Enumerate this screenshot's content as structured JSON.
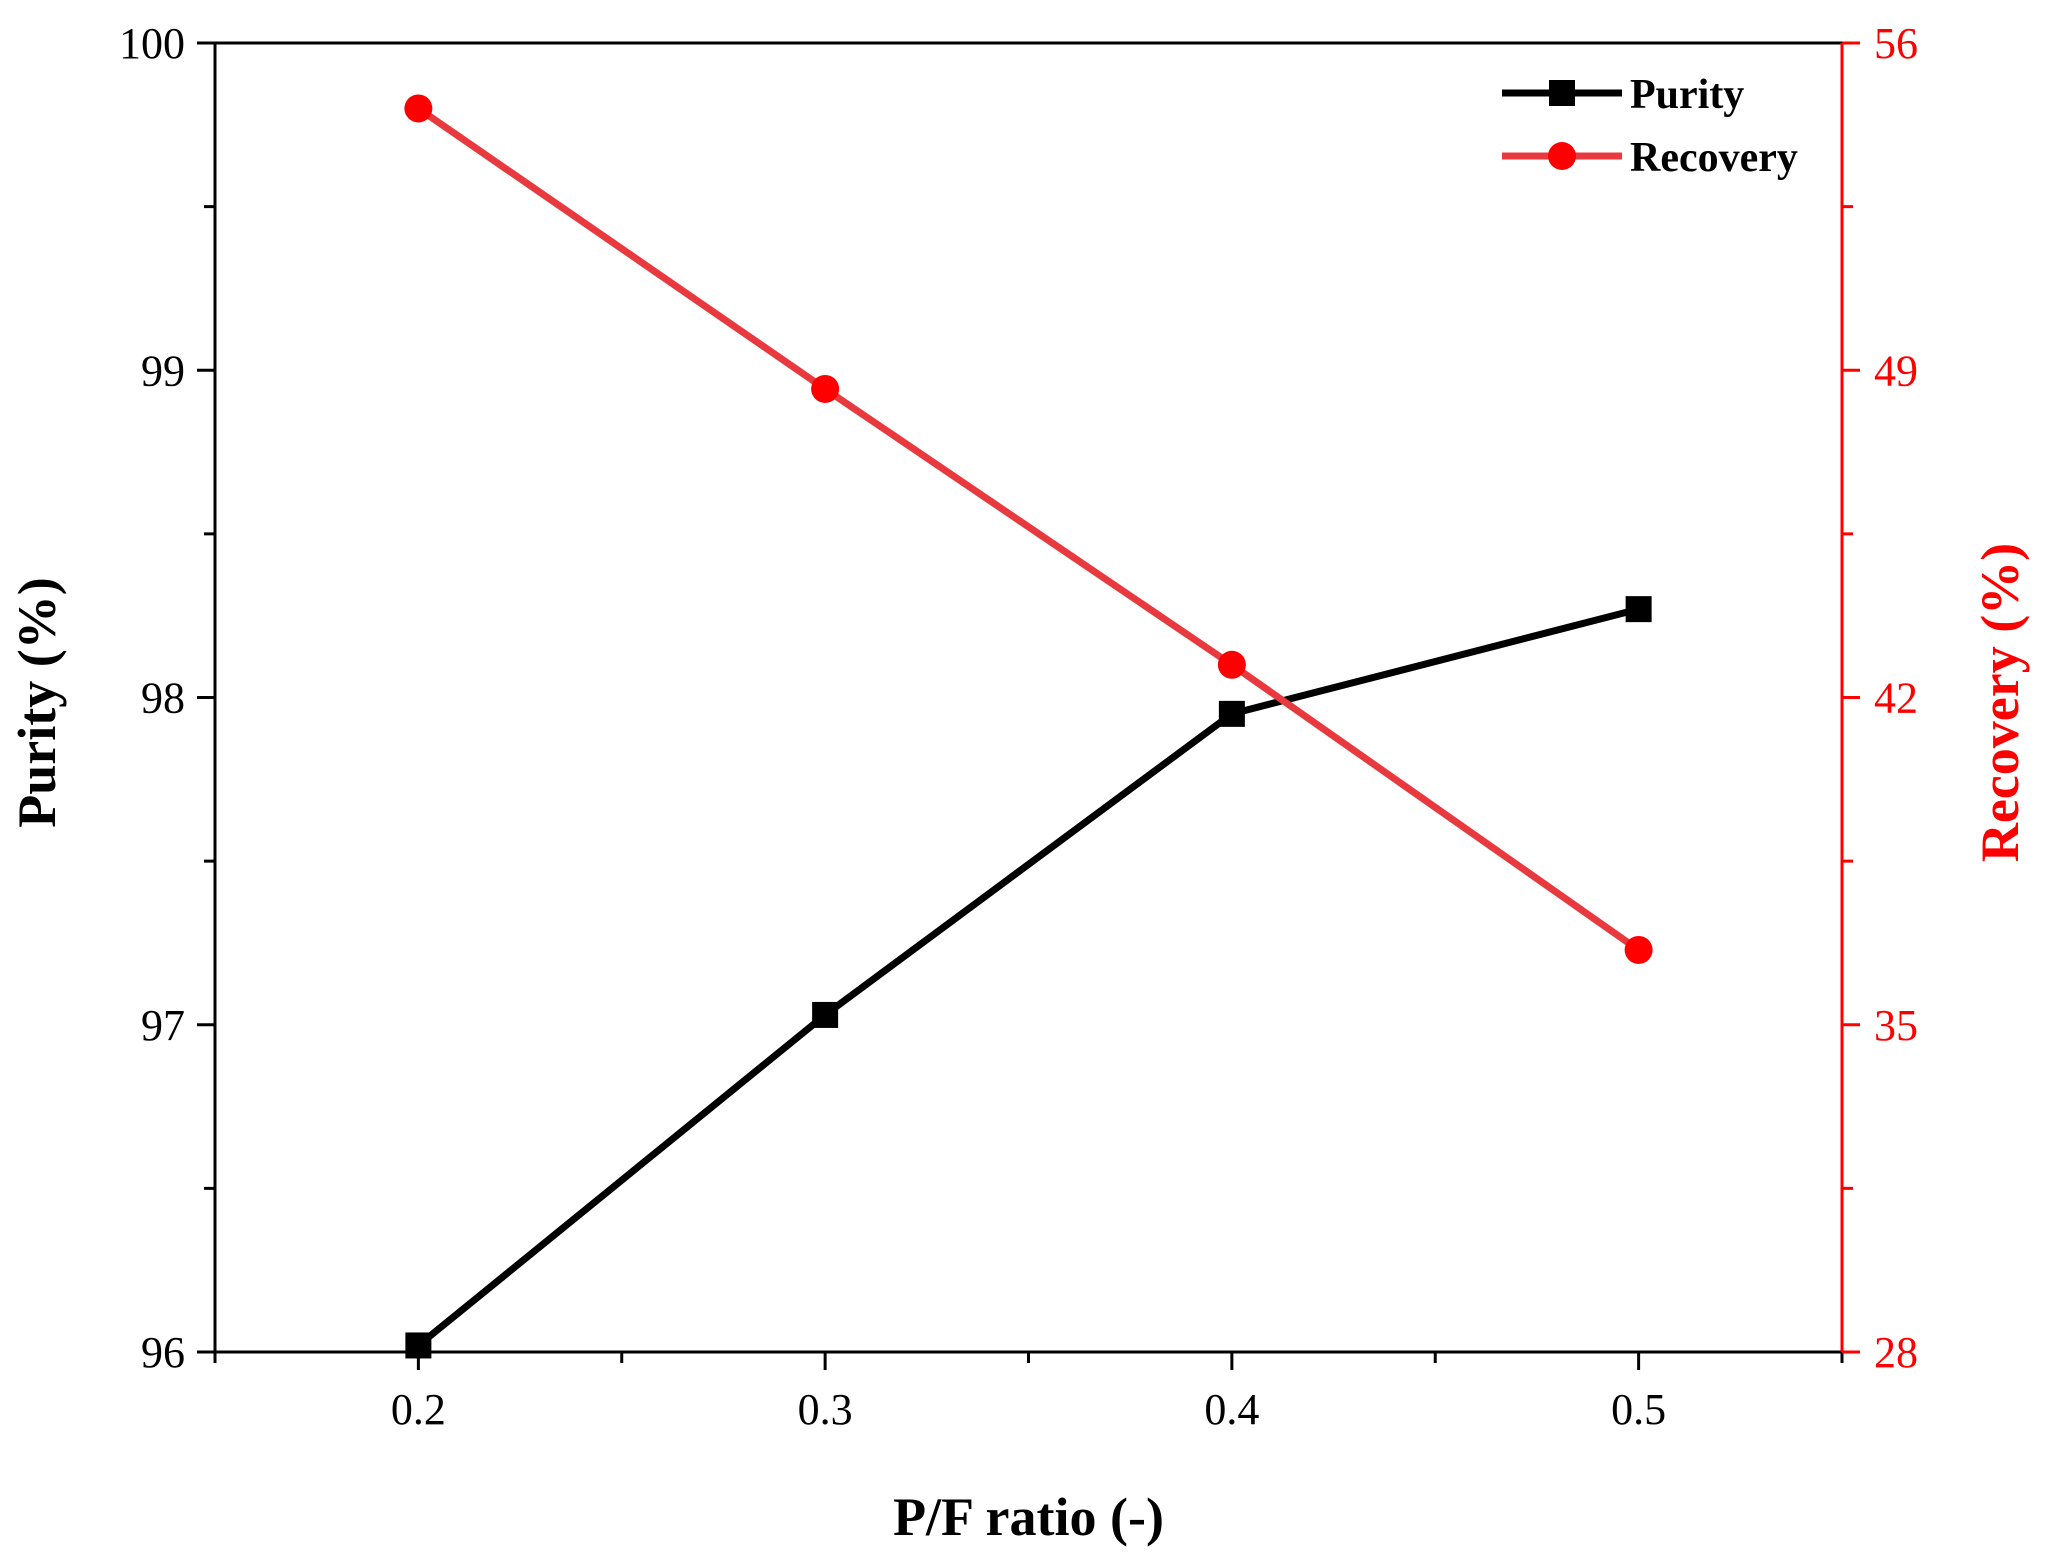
{
  "chart_data": {
    "type": "line",
    "title": "",
    "xlabel": "P/F ratio (-)",
    "ylabel": "Purity (%)",
    "y2label": "Recovery (%)",
    "xlim": [
      0.15,
      0.55
    ],
    "ylim": [
      96,
      100
    ],
    "y2lim": [
      28,
      56
    ],
    "x_ticks": [
      0.2,
      0.3,
      0.4,
      0.5
    ],
    "x_tick_labels": [
      "0.2",
      "0.3",
      "0.4",
      "0.5"
    ],
    "y_ticks": [
      96,
      97,
      98,
      99,
      100
    ],
    "y_tick_labels": [
      "96",
      "97",
      "98",
      "99",
      "100"
    ],
    "y2_ticks": [
      28,
      35,
      42,
      49,
      56
    ],
    "y2_tick_labels": [
      "28",
      "35",
      "42",
      "49",
      "56"
    ],
    "grid": false,
    "legend_position": "top-right",
    "x": [
      0.2,
      0.3,
      0.4,
      0.5
    ],
    "series": [
      {
        "name": "Purity",
        "axis": "left",
        "marker": "square",
        "color": "#000000",
        "values": [
          96.02,
          97.03,
          97.95,
          98.27
        ]
      },
      {
        "name": "Recovery",
        "axis": "right",
        "marker": "circle",
        "color": "#e8393f",
        "marker_color": "#ff0000",
        "values": [
          54.6,
          48.6,
          42.7,
          36.6
        ]
      }
    ],
    "colors": {
      "axis_left": "#000000",
      "axis_right": "#ff0000"
    }
  }
}
